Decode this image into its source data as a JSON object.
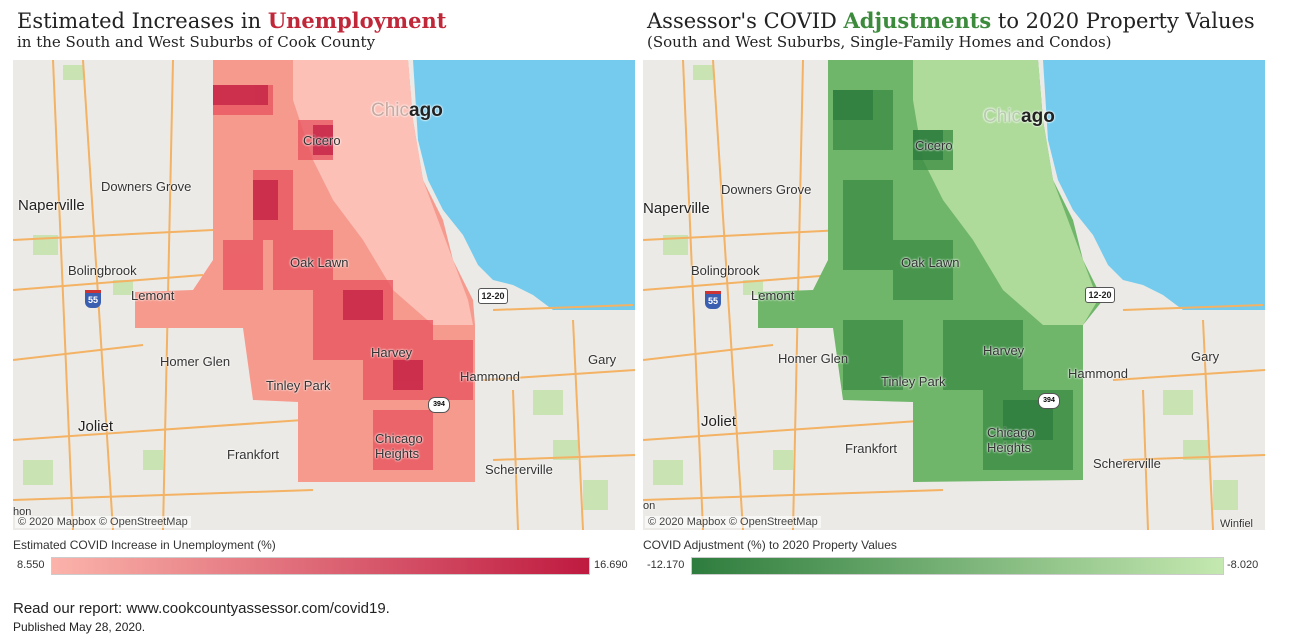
{
  "left": {
    "title_prefix": "Estimated Increases in ",
    "title_highlight": "Unemployment",
    "subtitle": "in the South and West Suburbs of Cook County",
    "highlight_color": "#c0283a",
    "legend_title": "Estimated COVID Increase in Unemployment (%)",
    "legend_min": "8.550",
    "legend_max": "16.690",
    "gradient_start": "#fbb3aa",
    "gradient_end": "#bf1a40",
    "places": {
      "chicago_pre": "Chic",
      "chicago_post": "ago",
      "cicero": "Cicero",
      "downers_grove": "Downers Grove",
      "naperville": "Naperville",
      "bolingbrook": "Bolingbrook",
      "lemont": "Lemont",
      "oak_lawn": "Oak Lawn",
      "homer_glen": "Homer Glen",
      "harvey": "Harvey",
      "tinley_park": "Tinley Park",
      "hammond": "Hammond",
      "gary": "Gary",
      "joliet": "Joliet",
      "chicago_heights": "Chicago Heights",
      "frankfort": "Frankfort",
      "schererville": "Schererville",
      "edge": "hon"
    },
    "attribution": "© 2020 Mapbox © OpenStreetMap"
  },
  "right": {
    "title_prefix": "Assessor's COVID ",
    "title_highlight": "Adjustments",
    "title_suffix": " to 2020 Property Values",
    "subtitle": "(South and West Suburbs, Single-Family Homes and Condos)",
    "highlight_color": "#3c8a3c",
    "legend_title": "COVID Adjustment (%) to 2020 Property Values",
    "legend_min": "-12.170",
    "legend_max": "-8.020",
    "gradient_start": "#2e7d3e",
    "gradient_end": "#c4e8b0",
    "places": {
      "chicago_pre": "Chic",
      "chicago_post": "ago",
      "cicero": "Cicero",
      "downers_grove": "Downers Grove",
      "naperville": "Naperville",
      "bolingbrook": "Bolingbrook",
      "lemont": "Lemont",
      "oak_lawn": "Oak Lawn",
      "homer_glen": "Homer Glen",
      "harvey": "Harvey",
      "tinley_park": "Tinley Park",
      "hammond": "Hammond",
      "gary": "Gary",
      "joliet": "Joliet",
      "chicago_heights": "Chicago Heights",
      "frankfort": "Frankfort",
      "schererville": "Schererville",
      "edge": "on",
      "winfield": "Winfiel"
    },
    "attribution": "© 2020 Mapbox © OpenStreetMap"
  },
  "shields": {
    "interstate": "55",
    "us_route": "12-20",
    "state_route": "394"
  },
  "footer": {
    "report": "Read our report: www.cookcountyassessor.com/covid19.",
    "published": "Published May 28, 2020."
  },
  "colors": {
    "lake": "#74cbee",
    "land": "#eceae6",
    "park": "#c9e3b3",
    "road": "#f3b264"
  }
}
